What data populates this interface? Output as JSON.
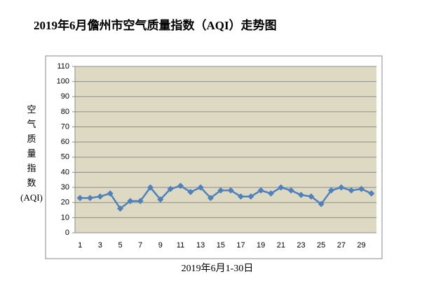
{
  "chart_data": {
    "type": "line",
    "title": "2019年6月儋州市空气质量指数（AQI）走势图",
    "x_label": "2019年6月1-30日",
    "y_label": [
      "空",
      "气",
      "质",
      "量",
      "指",
      "数",
      "(AQI)"
    ],
    "categories": [
      "1",
      null,
      "3",
      null,
      "5",
      null,
      "7",
      null,
      "9",
      null,
      "11",
      null,
      "13",
      null,
      "15",
      null,
      "17",
      null,
      "19",
      null,
      "21",
      null,
      "23",
      null,
      "25",
      null,
      "27",
      null,
      "29",
      null
    ],
    "series": [
      {
        "name": "AQI",
        "color": "#4f81bd",
        "values": [
          23,
          23,
          24,
          26,
          16,
          21,
          21,
          30,
          22,
          29,
          31,
          27,
          30,
          23,
          28,
          28,
          24,
          24,
          28,
          26,
          30,
          28,
          25,
          24,
          19,
          28,
          30,
          28,
          29,
          26
        ]
      }
    ],
    "ylim": [
      0,
      110
    ],
    "yticks": [
      0,
      10,
      20,
      30,
      40,
      50,
      60,
      70,
      80,
      90,
      100,
      110
    ],
    "grid": true,
    "plot_background": "#ddd9c3"
  }
}
